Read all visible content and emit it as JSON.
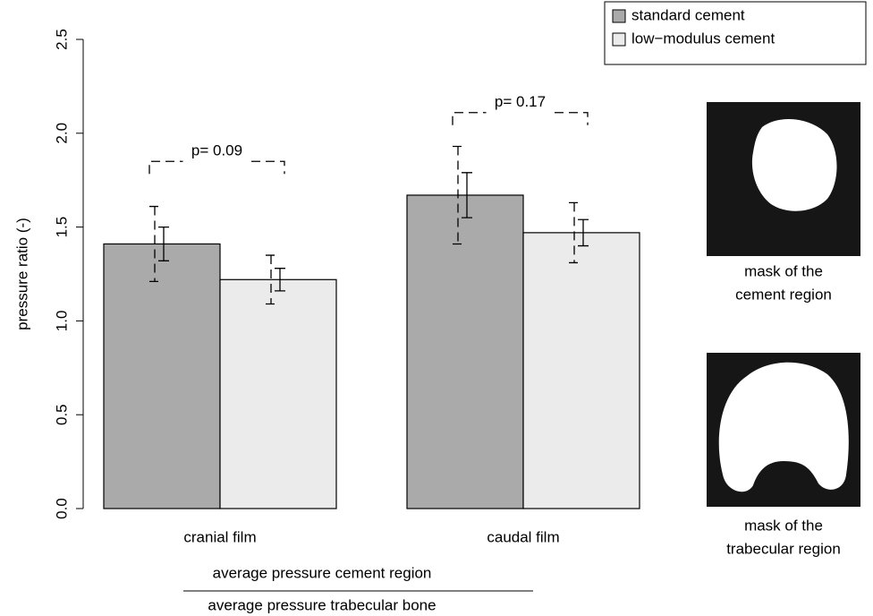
{
  "chart_data": {
    "type": "bar",
    "y_label": "pressure ratio (-)",
    "x_label": {
      "numerator": "average pressure cement region",
      "denominator": "average pressure trabecular bone"
    },
    "categories": [
      "cranial film",
      "caudal film"
    ],
    "series": [
      {
        "name": "standard cement",
        "color": "#aaaaaa",
        "values": [
          1.41,
          1.67
        ],
        "sd": [
          0.2,
          0.26
        ],
        "se": [
          0.09,
          0.12
        ]
      },
      {
        "name": "low−modulus cement",
        "color": "#ebebeb",
        "values": [
          1.22,
          1.47
        ],
        "sd": [
          0.13,
          0.16
        ],
        "se": [
          0.06,
          0.07
        ]
      }
    ],
    "ylim": [
      0,
      2.5
    ],
    "yticks": [
      {
        "value": 0,
        "label": "0.0"
      },
      0.5,
      {
        "value": 1,
        "label": "1.0"
      },
      1.5,
      {
        "value": 2,
        "label": "2.0"
      },
      2.5
    ],
    "annotations": [
      {
        "text": "p= 0.09",
        "y": 1.85
      },
      {
        "text": "p= 0.17",
        "y": 2.11
      }
    ],
    "legend": "top-right"
  },
  "images": [
    {
      "caption": [
        "mask of the",
        "cement region"
      ]
    },
    {
      "caption": [
        "mask of the",
        "trabecular region"
      ]
    }
  ]
}
